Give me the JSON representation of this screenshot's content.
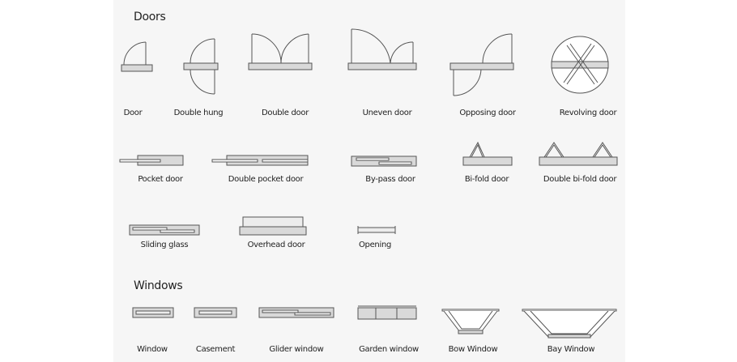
{
  "sections": {
    "doors_title": "Doors",
    "windows_title": "Windows"
  },
  "doors": {
    "door": "Door",
    "double_hung": "Double hung",
    "double_door": "Double door",
    "uneven_door": "Uneven door",
    "opposing_door": "Opposing door",
    "revolving_door": "Revolving door",
    "pocket_door": "Pocket door",
    "double_pocket_door": "Double pocket door",
    "bypass_door": "By-pass door",
    "bifold_door": "Bi-fold door",
    "double_bifold_door": "Double bi-fold door",
    "sliding_glass": "Sliding glass",
    "overhead_door": "Overhead door",
    "opening": "Opening"
  },
  "windows": {
    "window": "Window",
    "casement": "Casement",
    "glider_window": "Glider window",
    "garden_window": "Garden window",
    "bow_window": "Bow Window",
    "bay_window": "Bay Window"
  }
}
